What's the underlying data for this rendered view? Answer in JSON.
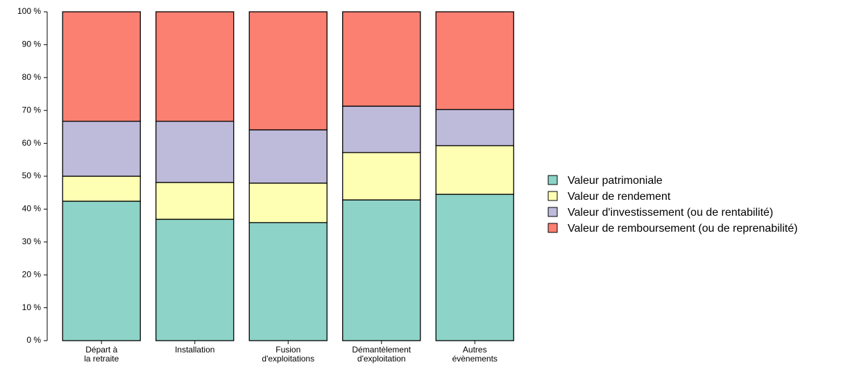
{
  "chart_data": {
    "type": "stacked_bar",
    "categories": [
      [
        "Départ à",
        "la retraite"
      ],
      [
        "Installation"
      ],
      [
        "Fusion",
        "d'exploitations"
      ],
      [
        "Démantèlement",
        "d'exploitation"
      ],
      [
        "Autres",
        "évènements"
      ]
    ],
    "series": [
      {
        "name": "Valeur patrimoniale",
        "color": "#8dd3c7",
        "values": [
          42.4,
          36.9,
          35.9,
          42.8,
          44.5
        ]
      },
      {
        "name": "Valeur de rendement",
        "color": "#ffffb3",
        "values": [
          7.6,
          11.2,
          12.0,
          14.4,
          14.8
        ]
      },
      {
        "name": "Valeur d'investissement (ou de rentabilité)",
        "color": "#bebada",
        "values": [
          16.7,
          18.6,
          16.2,
          14.1,
          11.0
        ]
      },
      {
        "name": "Valeur de remboursement (ou de reprenabilité)",
        "color": "#fb8072",
        "values": [
          33.3,
          33.3,
          35.9,
          28.7,
          29.7
        ]
      }
    ],
    "ylim": [
      0,
      100
    ],
    "yticks": [
      {
        "value": 0,
        "label": "0 %"
      },
      {
        "value": 10,
        "label": "10 %"
      },
      {
        "value": 20,
        "label": "20 %"
      },
      {
        "value": 30,
        "label": "30 %"
      },
      {
        "value": 40,
        "label": "40 %"
      },
      {
        "value": 50,
        "label": "50 %"
      },
      {
        "value": 60,
        "label": "60 %"
      },
      {
        "value": 70,
        "label": "70 %"
      },
      {
        "value": 80,
        "label": "80 %"
      },
      {
        "value": 90,
        "label": "90 %"
      },
      {
        "value": 100,
        "label": "100 %"
      }
    ],
    "legend": "right"
  }
}
